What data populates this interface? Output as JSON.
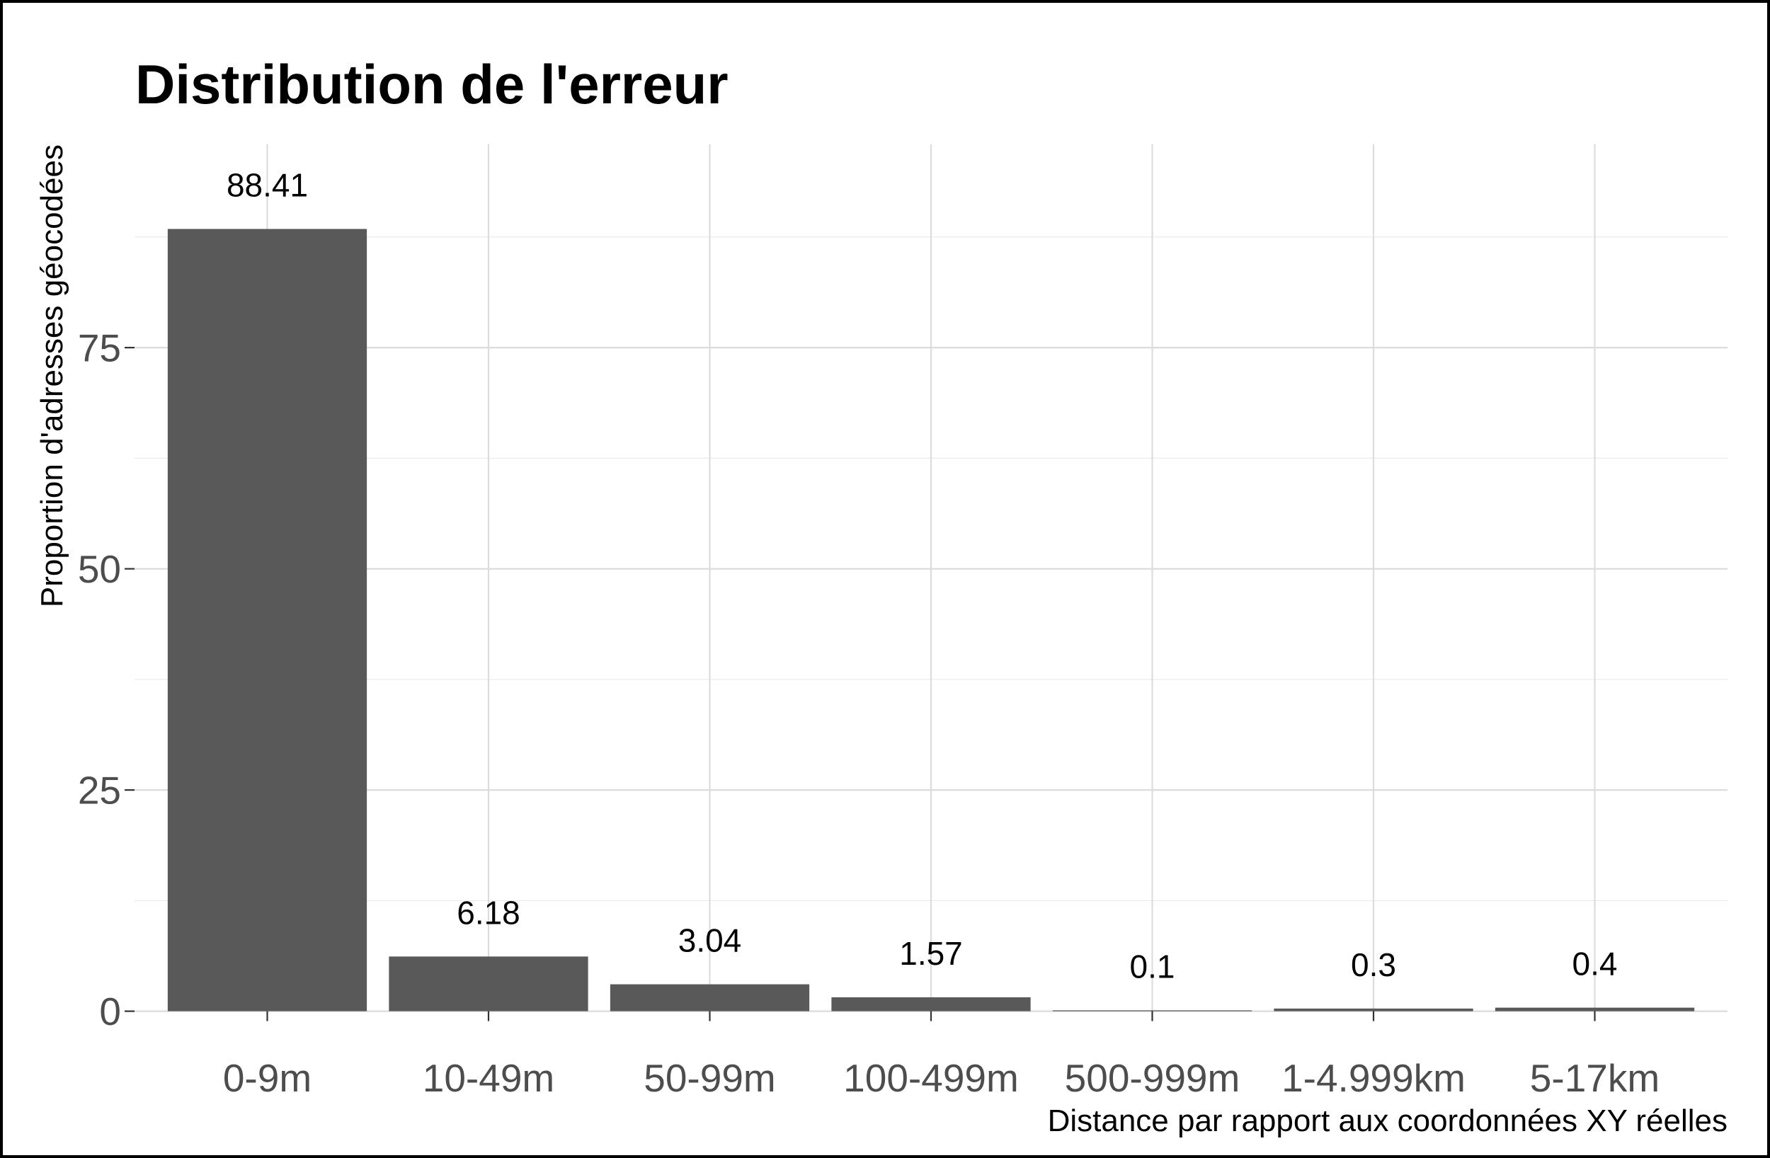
{
  "chart_data": {
    "type": "bar",
    "title": "Distribution de l'erreur",
    "xlabel": "Distance par rapport aux coordonnées XY réelles",
    "ylabel": "Proportion d'adresses géocodées",
    "categories": [
      "0-9m",
      "10-49m",
      "50-99m",
      "100-499m",
      "500-999m",
      "1-4.999km",
      "5-17km"
    ],
    "values": [
      88.41,
      6.18,
      3.04,
      1.57,
      0.1,
      0.3,
      0.4
    ],
    "yticks": [
      0,
      25,
      50,
      75
    ],
    "ylim": [
      0,
      98
    ],
    "grid": true,
    "data_labels": true
  },
  "colors": {
    "bar": "#595959",
    "axis_text": "#4d4d4d",
    "label_text": "#000000"
  }
}
